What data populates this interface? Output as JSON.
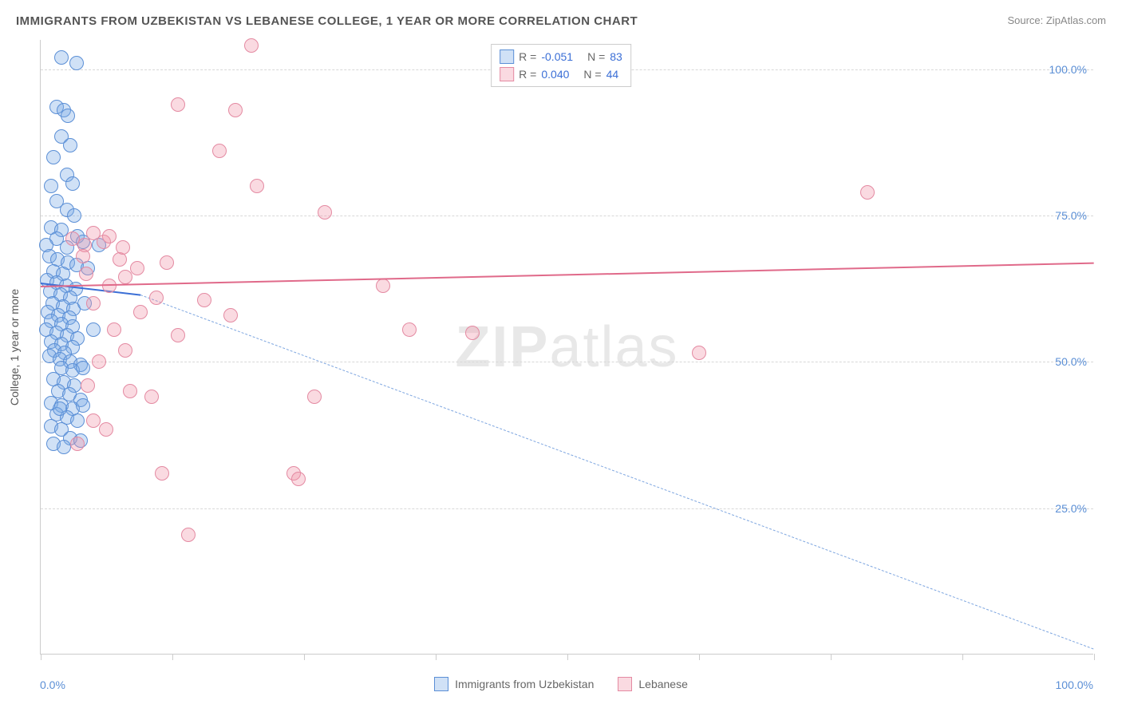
{
  "title": "IMMIGRANTS FROM UZBEKISTAN VS LEBANESE COLLEGE, 1 YEAR OR MORE CORRELATION CHART",
  "source_label": "Source: ZipAtlas.com",
  "chart": {
    "type": "scatter",
    "y_axis_title": "College, 1 year or more",
    "xlim": [
      0,
      100
    ],
    "ylim": [
      0,
      105
    ],
    "y_ticks": [
      25,
      50,
      75,
      100
    ],
    "y_tick_labels": [
      "25.0%",
      "50.0%",
      "75.0%",
      "100.0%"
    ],
    "x_min_label": "0.0%",
    "x_max_label": "100.0%",
    "x_ticks_pct": [
      0,
      12.5,
      25,
      37.5,
      50,
      62.5,
      75,
      87.5,
      100
    ],
    "background_color": "#ffffff",
    "grid_color": "#d8d8d8",
    "axis_color": "#cccccc",
    "marker_radius": 9,
    "marker_stroke_width": 1.2,
    "series": [
      {
        "id": "uzbekistan",
        "label": "Immigrants from Uzbekistan",
        "fill": "rgba(120,170,230,0.35)",
        "stroke": "#5b8fd6",
        "R": "-0.051",
        "N": "83",
        "trend": {
          "x1": 0,
          "y1": 63.5,
          "x2": 9.5,
          "y2": 61.5,
          "color": "#3b6fd6",
          "width": 2
        },
        "dashed_extension": {
          "x1": 9.5,
          "y1": 61.5,
          "x2": 100,
          "y2": 1.0,
          "color": "#7ea6e0"
        },
        "points": [
          [
            2.0,
            102.0
          ],
          [
            3.4,
            101.0
          ],
          [
            1.5,
            93.5
          ],
          [
            2.2,
            93.0
          ],
          [
            2.6,
            92.0
          ],
          [
            2.0,
            88.5
          ],
          [
            2.8,
            87.0
          ],
          [
            1.2,
            85.0
          ],
          [
            2.5,
            82.0
          ],
          [
            1.0,
            80.0
          ],
          [
            3.0,
            80.5
          ],
          [
            1.5,
            77.5
          ],
          [
            2.5,
            76.0
          ],
          [
            3.2,
            75.0
          ],
          [
            1.0,
            73.0
          ],
          [
            2.0,
            72.5
          ],
          [
            3.5,
            71.5
          ],
          [
            1.5,
            71.0
          ],
          [
            0.5,
            70.0
          ],
          [
            2.5,
            69.5
          ],
          [
            4.0,
            70.5
          ],
          [
            5.5,
            70.0
          ],
          [
            0.8,
            68.0
          ],
          [
            1.6,
            67.5
          ],
          [
            2.6,
            67.0
          ],
          [
            3.4,
            66.5
          ],
          [
            1.2,
            65.5
          ],
          [
            2.1,
            65.0
          ],
          [
            0.6,
            64.0
          ],
          [
            1.5,
            63.5
          ],
          [
            2.4,
            63.0
          ],
          [
            3.3,
            62.5
          ],
          [
            0.9,
            62.0
          ],
          [
            1.9,
            61.5
          ],
          [
            2.8,
            61.0
          ],
          [
            4.5,
            66.0
          ],
          [
            1.1,
            60.0
          ],
          [
            2.1,
            59.5
          ],
          [
            3.1,
            59.0
          ],
          [
            0.7,
            58.5
          ],
          [
            1.7,
            58.0
          ],
          [
            2.7,
            57.5
          ],
          [
            4.2,
            60.0
          ],
          [
            1.0,
            57.0
          ],
          [
            2.0,
            56.5
          ],
          [
            3.0,
            56.0
          ],
          [
            0.5,
            55.5
          ],
          [
            1.5,
            55.0
          ],
          [
            2.5,
            54.5
          ],
          [
            3.5,
            54.0
          ],
          [
            1.0,
            53.5
          ],
          [
            2.0,
            53.0
          ],
          [
            3.0,
            52.5
          ],
          [
            5.0,
            55.5
          ],
          [
            1.3,
            52.0
          ],
          [
            2.3,
            51.5
          ],
          [
            0.8,
            51.0
          ],
          [
            1.8,
            50.5
          ],
          [
            2.8,
            50.0
          ],
          [
            3.8,
            49.5
          ],
          [
            2.0,
            49.0
          ],
          [
            3.0,
            48.5
          ],
          [
            4.0,
            49.0
          ],
          [
            1.2,
            47.0
          ],
          [
            2.2,
            46.5
          ],
          [
            3.2,
            46.0
          ],
          [
            1.7,
            45.0
          ],
          [
            2.7,
            44.5
          ],
          [
            3.8,
            43.5
          ],
          [
            1.0,
            43.0
          ],
          [
            2.0,
            42.5
          ],
          [
            3.0,
            42.0
          ],
          [
            4.0,
            42.5
          ],
          [
            1.5,
            41.0
          ],
          [
            2.5,
            40.5
          ],
          [
            3.5,
            40.0
          ],
          [
            1.0,
            39.0
          ],
          [
            2.0,
            38.5
          ],
          [
            2.8,
            37.0
          ],
          [
            3.8,
            36.5
          ],
          [
            1.2,
            36.0
          ],
          [
            2.2,
            35.5
          ],
          [
            1.8,
            42.0
          ]
        ]
      },
      {
        "id": "lebanese",
        "label": "Lebanese",
        "fill": "rgba(240,150,170,0.35)",
        "stroke": "#e48aa2",
        "R": "0.040",
        "N": "44",
        "trend": {
          "x1": 0,
          "y1": 63.0,
          "x2": 100,
          "y2": 67.0,
          "color": "#e06a8a",
          "width": 2
        },
        "points": [
          [
            20.0,
            104.0
          ],
          [
            18.5,
            93.0
          ],
          [
            13.0,
            94.0
          ],
          [
            5.0,
            72.0
          ],
          [
            6.0,
            70.5
          ],
          [
            4.2,
            70.0
          ],
          [
            7.5,
            67.5
          ],
          [
            17.0,
            86.0
          ],
          [
            20.5,
            80.0
          ],
          [
            15.5,
            60.5
          ],
          [
            13.0,
            54.5
          ],
          [
            11.0,
            61.0
          ],
          [
            9.2,
            66.0
          ],
          [
            8.0,
            64.5
          ],
          [
            6.5,
            63.0
          ],
          [
            5.5,
            50.0
          ],
          [
            4.5,
            46.0
          ],
          [
            3.5,
            36.0
          ],
          [
            8.5,
            45.0
          ],
          [
            10.5,
            44.0
          ],
          [
            11.5,
            31.0
          ],
          [
            14.0,
            20.5
          ],
          [
            24.0,
            31.0
          ],
          [
            24.5,
            30.0
          ],
          [
            18.0,
            58.0
          ],
          [
            27.0,
            75.5
          ],
          [
            26.0,
            44.0
          ],
          [
            32.5,
            63.0
          ],
          [
            35.0,
            55.5
          ],
          [
            41.0,
            55.0
          ],
          [
            62.5,
            51.5
          ],
          [
            78.5,
            79.0
          ],
          [
            7.0,
            55.5
          ],
          [
            5.0,
            40.0
          ],
          [
            6.2,
            38.5
          ],
          [
            4.0,
            68.0
          ],
          [
            3.0,
            71.0
          ],
          [
            12.0,
            67.0
          ],
          [
            9.5,
            58.5
          ],
          [
            8.0,
            52.0
          ],
          [
            6.5,
            71.5
          ],
          [
            7.8,
            69.5
          ],
          [
            4.3,
            65.0
          ],
          [
            5.0,
            60.0
          ]
        ]
      }
    ],
    "legend_bottom": [
      {
        "series": "uzbekistan"
      },
      {
        "series": "lebanese"
      }
    ]
  },
  "watermark": {
    "text_bold": "ZIP",
    "text_light": "atlas",
    "color": "rgba(150,150,150,0.22)"
  }
}
